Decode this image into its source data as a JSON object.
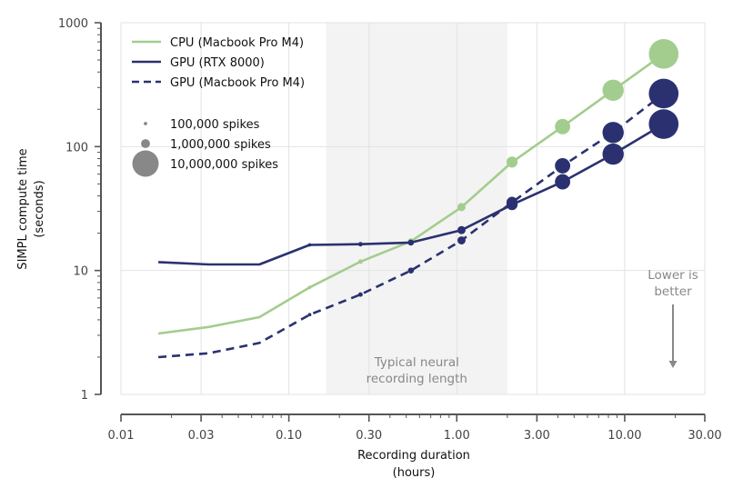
{
  "chart_data": {
    "type": "line",
    "title": "",
    "xlabel": [
      "Recording duration",
      "(hours)"
    ],
    "ylabel": [
      "SIMPL compute time",
      "(seconds)"
    ],
    "xscale": "log",
    "yscale": "log",
    "xlim": [
      0.01,
      30
    ],
    "ylim": [
      1,
      1000
    ],
    "grid": true,
    "x_ticks": [
      0.01,
      0.03,
      0.1,
      0.3,
      1,
      3,
      10,
      30
    ],
    "x_tick_labels": [
      "0.01",
      "0.03",
      "0.10",
      "0.30",
      "1.00",
      "3.00",
      "10.00",
      "30.00"
    ],
    "y_ticks": [
      1,
      10,
      100,
      1000
    ],
    "y_tick_labels": [
      "1",
      "10",
      "100",
      "1000"
    ],
    "x": [
      0.0167,
      0.0333,
      0.0667,
      0.133,
      0.267,
      0.533,
      1.067,
      2.133,
      4.267,
      8.533,
      17.067
    ],
    "spikes": [
      null,
      null,
      null,
      100000,
      200000,
      400000,
      800000,
      1600000,
      3200000,
      6400000,
      12800000
    ],
    "series": [
      {
        "name": "CPU (Macbook Pro M4)",
        "color": "#a3cd8e",
        "dash": "solid",
        "values": [
          3.1,
          3.5,
          4.2,
          7.3,
          11.8,
          17.2,
          32.5,
          75,
          145,
          285,
          560
        ]
      },
      {
        "name": "GPU (RTX 8000)",
        "color": "#2b3170",
        "dash": "solid",
        "values": [
          11.7,
          11.2,
          11.2,
          16.1,
          16.3,
          16.8,
          21.2,
          34,
          52,
          87,
          152
        ]
      },
      {
        "name": "GPU (Macbook Pro M4)",
        "color": "#2b3170",
        "dash": "dashed",
        "values": [
          2.0,
          2.15,
          2.6,
          4.4,
          6.4,
          10.0,
          17.5,
          35.5,
          70,
          130,
          268
        ]
      }
    ],
    "size_legend": [
      {
        "label": "100,000 spikes",
        "spikes": 100000
      },
      {
        "label": "1,000,000 spikes",
        "spikes": 1000000
      },
      {
        "label": "10,000,000 spikes",
        "spikes": 10000000
      }
    ],
    "size_legend_color": "#888888",
    "shaded_region": {
      "x_range": [
        0.167,
        2.0
      ],
      "label": [
        "Typical neural",
        "recording length"
      ],
      "color": "#f3f3f3"
    },
    "annotation": {
      "lines": [
        "Lower is",
        "better"
      ],
      "arrow": "down",
      "color": "#888888"
    }
  }
}
